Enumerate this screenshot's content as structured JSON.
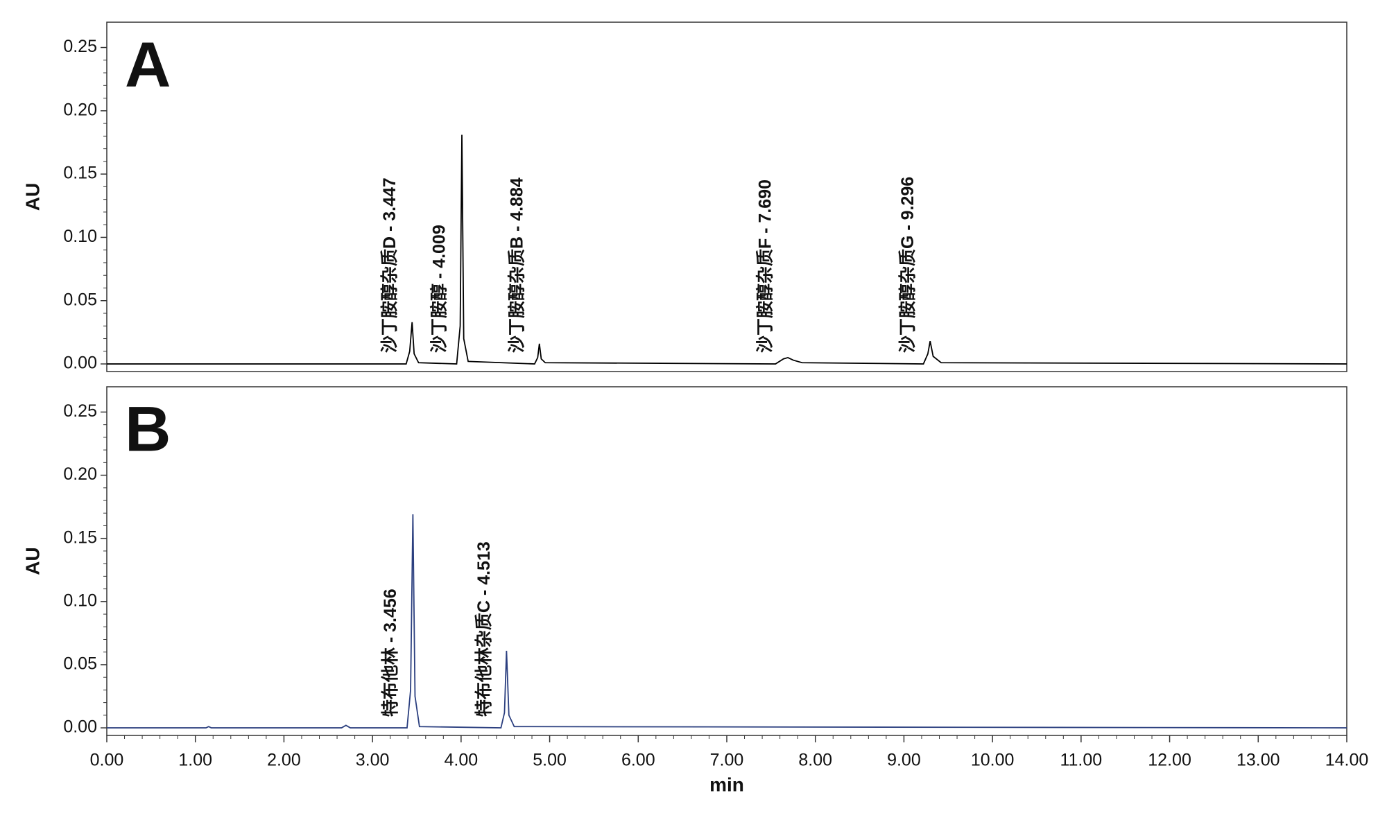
{
  "chart_data": [
    {
      "type": "line",
      "panel_label": "A",
      "ylabel": "AU",
      "color": "#000000",
      "x": [
        0,
        3.38,
        3.42,
        3.447,
        3.47,
        3.52,
        3.95,
        3.99,
        4.009,
        4.03,
        4.08,
        4.83,
        4.865,
        4.884,
        4.905,
        4.95,
        7.55,
        7.64,
        7.69,
        7.75,
        7.85,
        9.22,
        9.27,
        9.296,
        9.33,
        9.42,
        14
      ],
      "values": [
        0,
        0,
        0.01,
        0.033,
        0.008,
        0.001,
        0,
        0.03,
        0.181,
        0.02,
        0.002,
        0,
        0.005,
        0.016,
        0.004,
        0.001,
        0,
        0.004,
        0.005,
        0.003,
        0.001,
        0,
        0.008,
        0.018,
        0.006,
        0.001,
        0
      ],
      "annotations": [
        {
          "text": "沙丁胺醇杂质D - 3.447",
          "x": 3.447
        },
        {
          "text": "沙丁胺醇 - 4.009",
          "x": 4.009
        },
        {
          "text": "沙丁胺醇杂质B - 4.884",
          "x": 4.884
        },
        {
          "text": "沙丁胺醇杂质F - 7.690",
          "x": 7.69
        },
        {
          "text": "沙丁胺醇杂质G - 9.296",
          "x": 9.296
        }
      ],
      "xlim": [
        0,
        14
      ],
      "ylim": [
        -0.006,
        0.27
      ],
      "yticks": [
        {
          "value": 0,
          "label": "0.00"
        },
        {
          "value": 0.05,
          "label": "0.05"
        },
        {
          "value": 0.1,
          "label": "0.10"
        },
        {
          "value": 0.15,
          "label": "0.15"
        },
        {
          "value": 0.2,
          "label": "0.20"
        },
        {
          "value": 0.25,
          "label": "0.25"
        }
      ]
    },
    {
      "type": "line",
      "panel_label": "B",
      "ylabel": "AU",
      "xlabel": "min",
      "color": "#2b3f7f",
      "x": [
        0,
        1.12,
        1.15,
        1.18,
        2.65,
        2.7,
        2.75,
        3.39,
        3.43,
        3.456,
        3.48,
        3.53,
        4.45,
        4.49,
        4.513,
        4.54,
        4.6,
        14
      ],
      "values": [
        0,
        0,
        0.001,
        0,
        0,
        0.002,
        0,
        0,
        0.03,
        0.169,
        0.025,
        0.001,
        0,
        0.012,
        0.061,
        0.01,
        0.001,
        0
      ],
      "annotations": [
        {
          "text": "特布他林 - 3.456",
          "x": 3.456
        },
        {
          "text": "特布他林杂质C - 4.513",
          "x": 4.513
        }
      ],
      "xlim": [
        0,
        14
      ],
      "ylim": [
        -0.006,
        0.27
      ],
      "xticks": [
        {
          "value": 0,
          "label": "0.00"
        },
        {
          "value": 1,
          "label": "1.00"
        },
        {
          "value": 2,
          "label": "2.00"
        },
        {
          "value": 3,
          "label": "3.00"
        },
        {
          "value": 4,
          "label": "4.00"
        },
        {
          "value": 5,
          "label": "5.00"
        },
        {
          "value": 6,
          "label": "6.00"
        },
        {
          "value": 7,
          "label": "7.00"
        },
        {
          "value": 8,
          "label": "8.00"
        },
        {
          "value": 9,
          "label": "9.00"
        },
        {
          "value": 10,
          "label": "10.00"
        },
        {
          "value": 11,
          "label": "11.00"
        },
        {
          "value": 12,
          "label": "12.00"
        },
        {
          "value": 13,
          "label": "13.00"
        },
        {
          "value": 14,
          "label": "14.00"
        }
      ],
      "yticks": [
        {
          "value": 0,
          "label": "0.00"
        },
        {
          "value": 0.05,
          "label": "0.05"
        },
        {
          "value": 0.1,
          "label": "0.10"
        },
        {
          "value": 0.15,
          "label": "0.15"
        },
        {
          "value": 0.2,
          "label": "0.20"
        },
        {
          "value": 0.25,
          "label": "0.25"
        }
      ]
    }
  ]
}
